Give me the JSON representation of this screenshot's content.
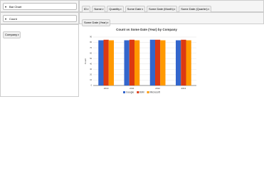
{
  "ui": {
    "renderer": "Bar Chart",
    "aggregator": "Count",
    "unused_fields": [
      "ID",
      "Name",
      "Quantity",
      "Some Date",
      "Some Date (Month)",
      "Some Date (Quarter)"
    ],
    "col_fields": [
      "Some Date (Year)"
    ],
    "row_fields": [
      "Company"
    ]
  },
  "chart_data": {
    "type": "bar",
    "title": "Count vs Some Date (Year) by Company",
    "y_label": "Count",
    "categories": [
      "2010",
      "2011",
      "2012",
      "2013"
    ],
    "series": [
      {
        "name": "Google",
        "color": "#3366cc",
        "values": [
          84,
          84,
          85,
          84
        ]
      },
      {
        "name": "IBM",
        "color": "#dc3912",
        "values": [
          85,
          85,
          85,
          85
        ]
      },
      {
        "name": "Microsoft",
        "color": "#ff9900",
        "values": [
          84,
          84,
          84,
          84
        ]
      }
    ],
    "ylim": [
      0,
      90
    ],
    "yticks": [
      0,
      10,
      20,
      30,
      40,
      50,
      60,
      70,
      80,
      90
    ],
    "grid": true
  }
}
